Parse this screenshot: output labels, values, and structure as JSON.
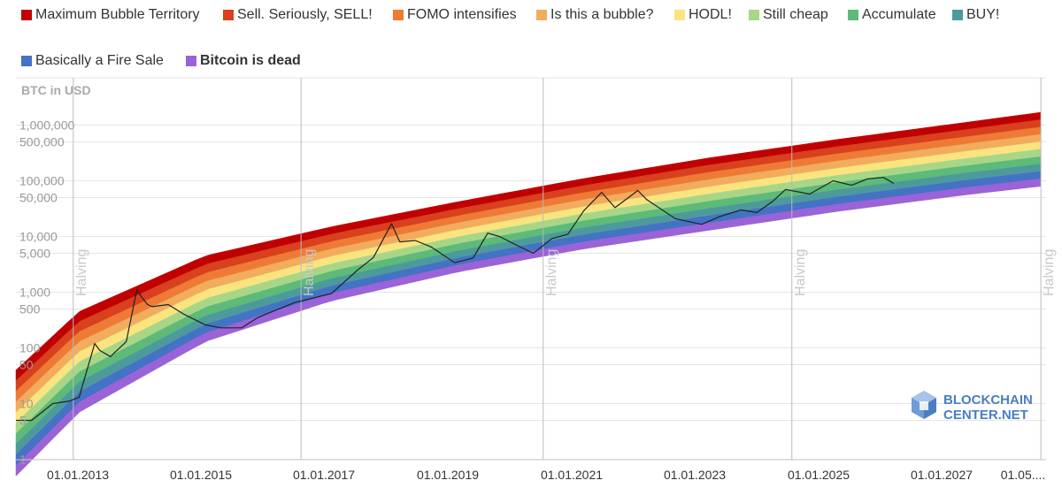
{
  "legend": [
    {
      "label": "Maximum Bubble Territory",
      "color": "#c00000"
    },
    {
      "label": "Sell. Seriously, SELL!",
      "color": "#d8401e"
    },
    {
      "label": "FOMO intensifies",
      "color": "#ee7a36"
    },
    {
      "label": "Is this a bubble?",
      "color": "#f2ac5e"
    },
    {
      "label": "HODL!",
      "color": "#f9e47f"
    },
    {
      "label": "Still cheap",
      "color": "#a8d687"
    },
    {
      "label": "Accumulate",
      "color": "#5dba79"
    },
    {
      "label": "BUY!",
      "color": "#4d9a9c"
    },
    {
      "label": "Basically a Fire Sale",
      "color": "#4472c4"
    },
    {
      "label": "Bitcoin is dead",
      "color": "#9b63d8",
      "bold": true
    }
  ],
  "logo": {
    "line1": "BLOCKCHAIN",
    "line2": "CENTER.NET",
    "icon": "cube-logo-icon"
  },
  "chart_data": {
    "type": "area",
    "ylabel": "BTC in USD",
    "yscale": "log",
    "ylim": [
      0.5,
      10000000
    ],
    "y_ticks": [
      "1,000,000",
      "500,000",
      "100,000",
      "50,000",
      "10,000",
      "5,000",
      "1,000",
      "500",
      "100",
      "50",
      "10",
      "5",
      "1"
    ],
    "x_ticks": [
      "01.01.2013",
      "01.01.2015",
      "01.01.2017",
      "01.01.2019",
      "01.01.2021",
      "01.01.2023",
      "01.01.2025",
      "01.01.2027",
      "01.05...."
    ],
    "halving_label": "Halving",
    "halvings": [
      "2012-11-28",
      "2016-07-09",
      "2020-05-11",
      "2024-04-20",
      "2028-04-01"
    ],
    "bands": [
      {
        "name": "Maximum Bubble Territory",
        "color": "#c00000"
      },
      {
        "name": "Sell. Seriously, SELL!",
        "color": "#d8401e"
      },
      {
        "name": "FOMO intensifies",
        "color": "#ee7a36"
      },
      {
        "name": "Is this a bubble?",
        "color": "#f2ac5e"
      },
      {
        "name": "HODL!",
        "color": "#f9e47f"
      },
      {
        "name": "Still cheap",
        "color": "#a8d687"
      },
      {
        "name": "Accumulate",
        "color": "#5dba79"
      },
      {
        "name": "BUY!",
        "color": "#4d9a9c"
      },
      {
        "name": "Basically a Fire Sale",
        "color": "#4472c4"
      },
      {
        "name": "Bitcoin is dead",
        "color": "#9b63d8"
      }
    ],
    "band_edges": [
      {
        "date": "2012-01-01",
        "bottom": 0.5,
        "top": 40
      },
      {
        "date": "2013-01-01",
        "bottom": 7,
        "top": 450
      },
      {
        "date": "2015-01-01",
        "bottom": 130,
        "top": 4500
      },
      {
        "date": "2017-01-01",
        "bottom": 700,
        "top": 15000
      },
      {
        "date": "2019-01-01",
        "bottom": 2300,
        "top": 42000
      },
      {
        "date": "2021-01-01",
        "bottom": 6000,
        "top": 110000
      },
      {
        "date": "2023-01-01",
        "bottom": 13000,
        "top": 260000
      },
      {
        "date": "2025-01-01",
        "bottom": 28000,
        "top": 550000
      },
      {
        "date": "2027-01-01",
        "bottom": 55000,
        "top": 1100000
      },
      {
        "date": "2028-04-01",
        "bottom": 80000,
        "top": 1700000
      }
    ],
    "price_series": {
      "name": "BTC price",
      "color": "#222222",
      "points": [
        [
          "2012-01-01",
          5
        ],
        [
          "2012-04-01",
          5
        ],
        [
          "2012-08-01",
          10
        ],
        [
          "2012-11-01",
          11
        ],
        [
          "2013-01-01",
          13
        ],
        [
          "2013-04-01",
          120
        ],
        [
          "2013-05-01",
          90
        ],
        [
          "2013-07-01",
          70
        ],
        [
          "2013-10-01",
          130
        ],
        [
          "2013-12-01",
          1100
        ],
        [
          "2014-01-01",
          800
        ],
        [
          "2014-02-01",
          600
        ],
        [
          "2014-03-01",
          550
        ],
        [
          "2014-06-01",
          600
        ],
        [
          "2014-09-01",
          400
        ],
        [
          "2015-01-01",
          260
        ],
        [
          "2015-04-01",
          230
        ],
        [
          "2015-08-01",
          230
        ],
        [
          "2015-11-01",
          350
        ],
        [
          "2016-01-01",
          420
        ],
        [
          "2016-06-01",
          650
        ],
        [
          "2017-01-01",
          950
        ],
        [
          "2017-06-01",
          2500
        ],
        [
          "2017-09-01",
          4200
        ],
        [
          "2017-12-15",
          17000
        ],
        [
          "2018-02-01",
          8000
        ],
        [
          "2018-05-01",
          8500
        ],
        [
          "2018-08-01",
          6500
        ],
        [
          "2018-12-15",
          3400
        ],
        [
          "2019-04-01",
          4100
        ],
        [
          "2019-06-25",
          11500
        ],
        [
          "2019-09-01",
          10000
        ],
        [
          "2019-12-01",
          7200
        ],
        [
          "2020-03-15",
          5000
        ],
        [
          "2020-07-01",
          9200
        ],
        [
          "2020-10-01",
          11000
        ],
        [
          "2021-01-01",
          29000
        ],
        [
          "2021-04-15",
          62000
        ],
        [
          "2021-07-01",
          33000
        ],
        [
          "2021-11-10",
          67000
        ],
        [
          "2022-01-01",
          46000
        ],
        [
          "2022-06-15",
          21000
        ],
        [
          "2022-11-15",
          16500
        ],
        [
          "2023-03-01",
          23000
        ],
        [
          "2023-07-01",
          30000
        ],
        [
          "2023-10-01",
          27000
        ],
        [
          "2024-01-01",
          43000
        ],
        [
          "2024-03-15",
          70000
        ],
        [
          "2024-08-01",
          58000
        ],
        [
          "2024-12-15",
          100000
        ],
        [
          "2025-04-01",
          83000
        ],
        [
          "2025-07-01",
          108000
        ],
        [
          "2025-10-01",
          115000
        ],
        [
          "2025-12-01",
          90000
        ]
      ]
    }
  }
}
